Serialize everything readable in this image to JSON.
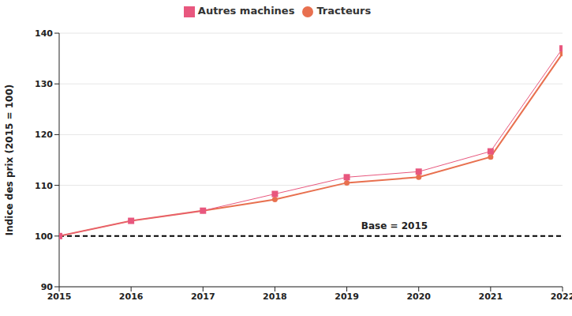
{
  "chart_data": {
    "type": "line",
    "x": [
      2015,
      2016,
      2017,
      2018,
      2019,
      2020,
      2021,
      2022
    ],
    "series": [
      {
        "name": "Tracteurs",
        "color": "#e8704f",
        "marker": "circle",
        "values": [
          100,
          103,
          105,
          107.2,
          110.5,
          111.6,
          115.6,
          136
        ]
      },
      {
        "name": "Autres machines",
        "color": "#e8577e",
        "marker": "square",
        "values": [
          100,
          103,
          105,
          108.3,
          111.6,
          112.7,
          116.7,
          137
        ]
      }
    ],
    "xlim": [
      2015,
      2022
    ],
    "xticks": [
      2015,
      2016,
      2017,
      2018,
      2019,
      2020,
      2021,
      2022
    ],
    "ylim": [
      90,
      140
    ],
    "yticks": [
      90,
      100,
      110,
      120,
      130,
      140
    ],
    "y_label": "Indice des prix (2015 = 100)",
    "grid": true,
    "legend": "top",
    "reference_line": {
      "y": 100,
      "label": "Base = 2015",
      "color": "#000000",
      "line_style": "dashed"
    }
  }
}
